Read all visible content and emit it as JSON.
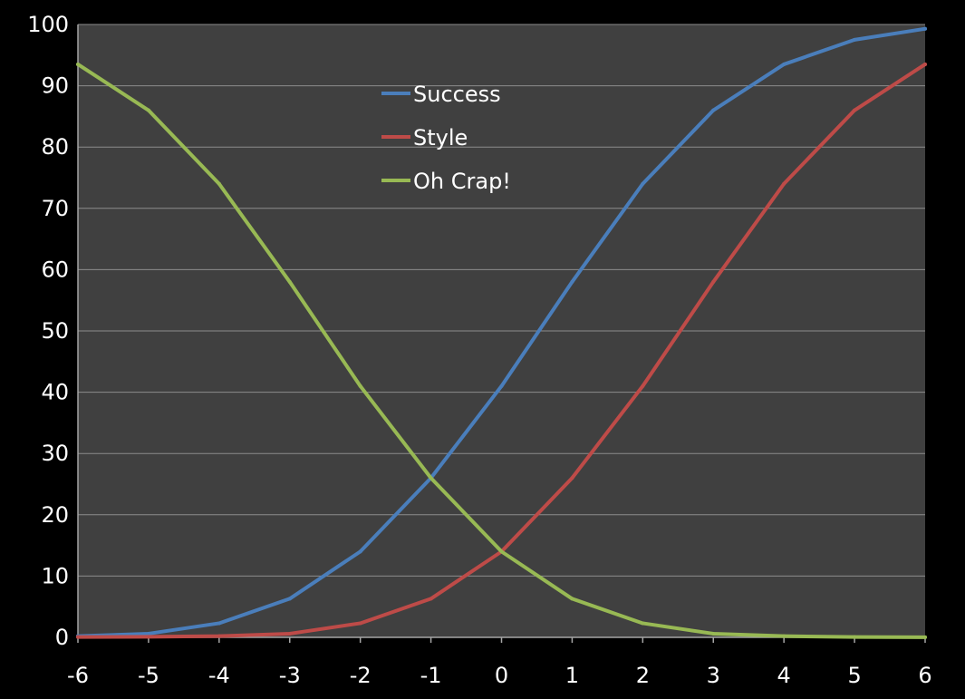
{
  "chart_data": {
    "type": "line",
    "title": "",
    "xlabel": "",
    "ylabel": "",
    "x": [
      -6,
      -5,
      -4,
      -3,
      -2,
      -1,
      0,
      1,
      2,
      3,
      4,
      5,
      6
    ],
    "xlim": [
      -6,
      6
    ],
    "ylim": [
      0,
      100
    ],
    "x_ticks": [
      "-6",
      "-5",
      "-4",
      "-3",
      "-2",
      "-1",
      "0",
      "1",
      "2",
      "3",
      "4",
      "5",
      "6"
    ],
    "y_ticks": [
      "0",
      "10",
      "20",
      "30",
      "40",
      "50",
      "60",
      "70",
      "80",
      "90",
      "100"
    ],
    "grid": true,
    "legend_position": "top-center",
    "series": [
      {
        "name": "Success",
        "color": "#4a7ebb",
        "values": [
          0.2,
          0.6,
          2.3,
          6.3,
          14,
          26,
          41,
          58,
          74,
          86,
          93.5,
          97.5,
          99.3
        ]
      },
      {
        "name": "Style",
        "color": "#be4b48",
        "values": [
          0.05,
          0.1,
          0.2,
          0.6,
          2.3,
          6.3,
          14,
          26,
          41,
          58,
          74,
          86,
          93.5
        ]
      },
      {
        "name": "Oh Crap!",
        "color": "#98b954",
        "values": [
          93.5,
          86,
          74,
          58,
          41,
          26,
          14,
          6.3,
          2.3,
          0.6,
          0.2,
          0.05,
          0.02
        ]
      }
    ],
    "plot_background": "#404040",
    "grid_color": "#8c8c8c"
  }
}
